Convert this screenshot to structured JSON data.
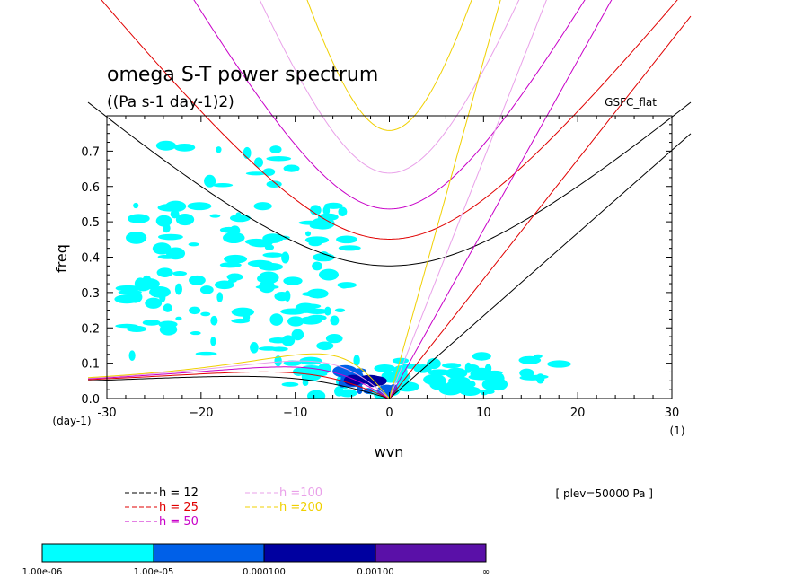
{
  "chart_data": {
    "type": "line",
    "title": "omega S-T power spectrum",
    "subtitle": "((Pa s-1 day-1)2)",
    "model_label": "GSFC_flat",
    "level_note": "[ plev=50000 Pa ]",
    "xlabel": "wvn",
    "ylabel": "freq",
    "x_unit_label": "(1)",
    "y_unit_label": "(day-1)",
    "xlim": [
      -30,
      30
    ],
    "ylim": [
      0,
      0.8
    ],
    "x_ticks": [
      -30,
      -20,
      -10,
      0,
      10,
      20,
      30
    ],
    "x_tick_labels": [
      "-30",
      "−20",
      "−10",
      "0",
      "10",
      "20",
      "30"
    ],
    "y_ticks": [
      0.0,
      0.1,
      0.2,
      0.3,
      0.4,
      0.5,
      0.6,
      0.7
    ],
    "y_tick_labels": [
      "0.0",
      "0.1",
      "0.2",
      "0.3",
      "0.4",
      "0.5",
      "0.6",
      "0.7"
    ],
    "dispersion_curves": [
      {
        "name": "h = 12",
        "h": 12,
        "color": "#000000",
        "label_color": "#000000"
      },
      {
        "name": "h = 25",
        "h": 25,
        "color": "#e00000",
        "label_color": "#e00000"
      },
      {
        "name": "h = 50",
        "h": 50,
        "color": "#c800c8",
        "label_color": "#c800c8"
      },
      {
        "name": "h =100",
        "h": 100,
        "color": "#e9a0e9",
        "label_color": "#e9a0e9"
      },
      {
        "name": "h =200",
        "h": 200,
        "color": "#f0d000",
        "label_color": "#f0d000"
      }
    ],
    "contour_levels": [
      {
        "label": "1.00e-06",
        "color": "#00ffff"
      },
      {
        "label": "1.00e-05",
        "color": "#0060e8"
      },
      {
        "label": "0.000100",
        "color": "#0000a0"
      },
      {
        "label": "0.00100",
        "color": "#5a10a8"
      },
      {
        "label": "∞",
        "color": ""
      }
    ],
    "shaded_regions": [
      {
        "level": 0,
        "k": [
          -28,
          -4
        ],
        "w": [
          0.12,
          0.55
        ],
        "n": 120,
        "seed": 3
      },
      {
        "level": 0,
        "k": [
          -28,
          -10
        ],
        "w": [
          0.55,
          0.72
        ],
        "n": 14,
        "seed": 5
      },
      {
        "level": 0,
        "k": [
          -12,
          12
        ],
        "w": [
          0.005,
          0.11
        ],
        "n": 60,
        "seed": 9
      },
      {
        "level": 0,
        "k": [
          4,
          20
        ],
        "w": [
          0.05,
          0.12
        ],
        "n": 10,
        "seed": 11
      },
      {
        "level": 1,
        "k": [
          -6,
          2
        ],
        "w": [
          0.02,
          0.08
        ],
        "n": 14,
        "seed": 13
      },
      {
        "level": 2,
        "k": [
          -4,
          -1
        ],
        "w": [
          0.03,
          0.06
        ],
        "n": 4,
        "seed": 17
      }
    ]
  }
}
